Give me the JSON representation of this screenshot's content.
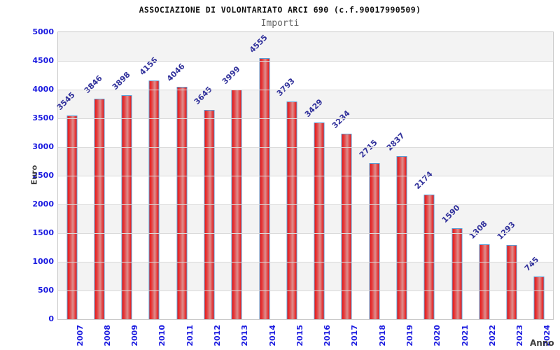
{
  "chart_data": {
    "type": "bar",
    "title": "ASSOCIAZIONE DI VOLONTARIATO ARCI 690 (c.f.90017990509)",
    "subtitle": "Importi",
    "xlabel": "Anno",
    "ylabel": "Euro",
    "categories": [
      "2007",
      "2008",
      "2009",
      "2010",
      "2011",
      "2012",
      "2013",
      "2014",
      "2015",
      "2016",
      "2017",
      "2018",
      "2019",
      "2020",
      "2021",
      "2022",
      "2023",
      "2024"
    ],
    "values": [
      3545,
      3846,
      3898,
      4156,
      4046,
      3645,
      3999,
      4555,
      3793,
      3429,
      3234,
      2715,
      2837,
      2174,
      1590,
      1308,
      1293,
      745
    ],
    "ylim": [
      0,
      5000
    ],
    "ytick_step": 500,
    "grid": true,
    "legend_position": "none",
    "band_fill": "striped-horizontal",
    "colors": {
      "bar_edge_red": "#e81414",
      "bar_center_red": "#dd8f8f",
      "bar_border_blue": "#5a9fd6",
      "tick_label_blue": "#1b1be0",
      "value_label_navy": "#31319b",
      "band_gray": "#f3f3f3",
      "gridline_gray": "#dadada",
      "axis_title_gray": "#3c3c3c",
      "title_black": "#111111",
      "subtitle_gray": "#666666"
    }
  }
}
